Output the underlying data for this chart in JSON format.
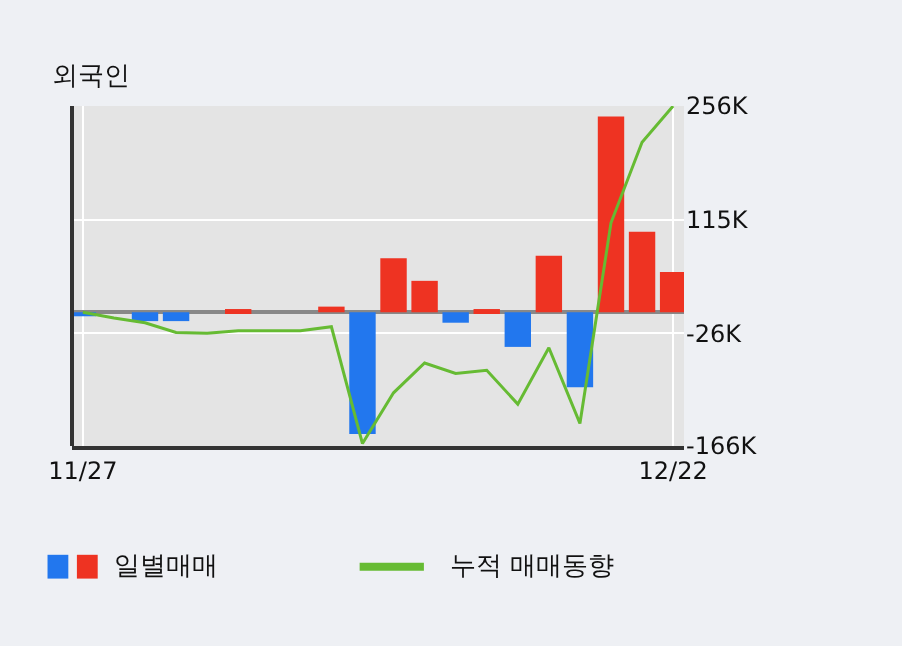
{
  "chart_data": {
    "type": "bar",
    "title": "외국인",
    "categories": [
      "11/27",
      null,
      null,
      null,
      null,
      null,
      null,
      null,
      null,
      null,
      null,
      null,
      null,
      null,
      null,
      null,
      null,
      null,
      null,
      "12/22"
    ],
    "series": [
      {
        "name": "일별매매",
        "colors": [
          "#2277ee",
          null,
          "#2277ee",
          "#2277ee",
          null,
          "#ee3322",
          null,
          null,
          "#ee3322",
          "#2277ee",
          "#ee3322",
          "#ee3322",
          "#2277ee",
          "#ee3322",
          "#2277ee",
          "#ee3322",
          "#2277ee",
          "#ee3322",
          "#ee3322",
          "#ee3322"
        ],
        "values": [
          -5,
          null,
          -11,
          -11,
          null,
          4,
          null,
          null,
          7,
          -151,
          67,
          39,
          -13,
          4,
          -43,
          70,
          -93,
          243,
          100,
          50
        ]
      },
      {
        "name": "누적 매매동향",
        "type": "line",
        "color": "#66bb33",
        "values": [
          0,
          -7,
          -13,
          -25,
          -26,
          -23,
          -23,
          -23,
          -18,
          -163,
          -100,
          -63,
          -76,
          -72,
          -114,
          -44,
          -138,
          111,
          211,
          256
        ]
      }
    ],
    "ylim": [
      -166,
      256
    ],
    "yticks": [
      {
        "value": 256,
        "label": "256K"
      },
      {
        "value": 115,
        "label": "115K"
      },
      {
        "value": -26,
        "label": "-26K"
      },
      {
        "value": -166,
        "label": "-166K"
      }
    ],
    "grid": true,
    "legend": "bottom"
  }
}
